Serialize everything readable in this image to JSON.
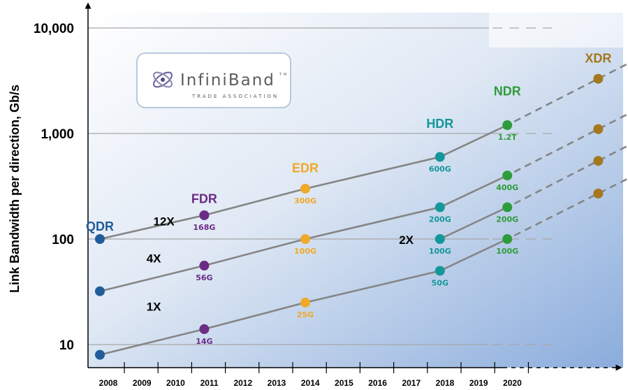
{
  "chart_data": {
    "type": "line",
    "y_scale": "log",
    "ylabel": "Link Bandwidth per direction, Gb/s",
    "xlabel": "",
    "xlim": [
      2007.5,
      2023.5
    ],
    "ylim": [
      7,
      13000
    ],
    "x_ticks": [
      "2008",
      "2009",
      "2010",
      "2011",
      "2012",
      "2013",
      "2014",
      "2015",
      "2016",
      "2017",
      "2018",
      "2019",
      "2020"
    ],
    "y_ticks": [
      {
        "value": 10,
        "label": "10"
      },
      {
        "value": 100,
        "label": "100"
      },
      {
        "value": 1000,
        "label": "1,000"
      },
      {
        "value": 10000,
        "label": "10,000"
      }
    ],
    "generations": [
      {
        "name": "QDR",
        "x": 2008.0,
        "y": 120,
        "color": "#1f5c99"
      },
      {
        "name": "FDR",
        "x": 2011.1,
        "y": 220,
        "color": "#6a2c85"
      },
      {
        "name": "EDR",
        "x": 2014.1,
        "y": 430,
        "color": "#f0a92a"
      },
      {
        "name": "HDR",
        "x": 2018.1,
        "y": 1130,
        "color": "#14979b"
      },
      {
        "name": "NDR",
        "x": 2020.1,
        "y": 2300,
        "color": "#2e9c3a"
      },
      {
        "name": "XDR",
        "x": 2022.8,
        "y": 4700,
        "color": "#a3781e"
      }
    ],
    "series": [
      {
        "name": "12X",
        "x": [
          2008.0,
          2011.1,
          2014.1,
          2018.1,
          2020.1
        ],
        "values": [
          100,
          168,
          300,
          600,
          1200
        ],
        "labels": [
          "",
          "168G",
          "300G",
          "600G",
          "1.2T"
        ],
        "label_x": 2009.9,
        "label_y": 135
      },
      {
        "name": "4X",
        "x": [
          2008.0,
          2011.1,
          2014.1,
          2018.1,
          2020.1
        ],
        "values": [
          32,
          56,
          100,
          200,
          400
        ],
        "labels": [
          "",
          "56G",
          "100G",
          "200G",
          "400G"
        ],
        "label_x": 2009.6,
        "label_y": 60
      },
      {
        "name": "1X",
        "x": [
          2008.0,
          2011.1,
          2014.1,
          2018.1,
          2020.1
        ],
        "values": [
          8,
          14,
          25,
          50,
          100
        ],
        "labels": [
          "",
          "14G",
          "25G",
          "50G",
          "100G"
        ],
        "label_x": 2009.6,
        "label_y": 21
      },
      {
        "name": "2X",
        "x": [
          2018.1,
          2020.1
        ],
        "values": [
          100,
          200
        ],
        "labels": [
          "100G",
          "200G"
        ],
        "label_x": 2017.1,
        "label_y": 90
      }
    ],
    "future_points": [
      {
        "x": 2022.8,
        "y": 3300,
        "color": "#a3781e"
      },
      {
        "x": 2022.8,
        "y": 1100,
        "color": "#a3781e"
      },
      {
        "x": 2022.8,
        "y": 550,
        "color": "#a3781e"
      },
      {
        "x": 2022.8,
        "y": 270,
        "color": "#a3781e"
      }
    ],
    "colors": {
      "qdr": "#1f5c99",
      "fdr": "#6a2c85",
      "edr": "#f0a92a",
      "hdr": "#14979b",
      "ndr": "#2e9c3a",
      "xdr": "#a3781e",
      "line": "#858585",
      "grid": "#a6a6a6"
    },
    "grid": true
  },
  "logo": {
    "main": "InfiniBand",
    "tm": "TM",
    "sub": "TRADE ASSOCIATION"
  }
}
